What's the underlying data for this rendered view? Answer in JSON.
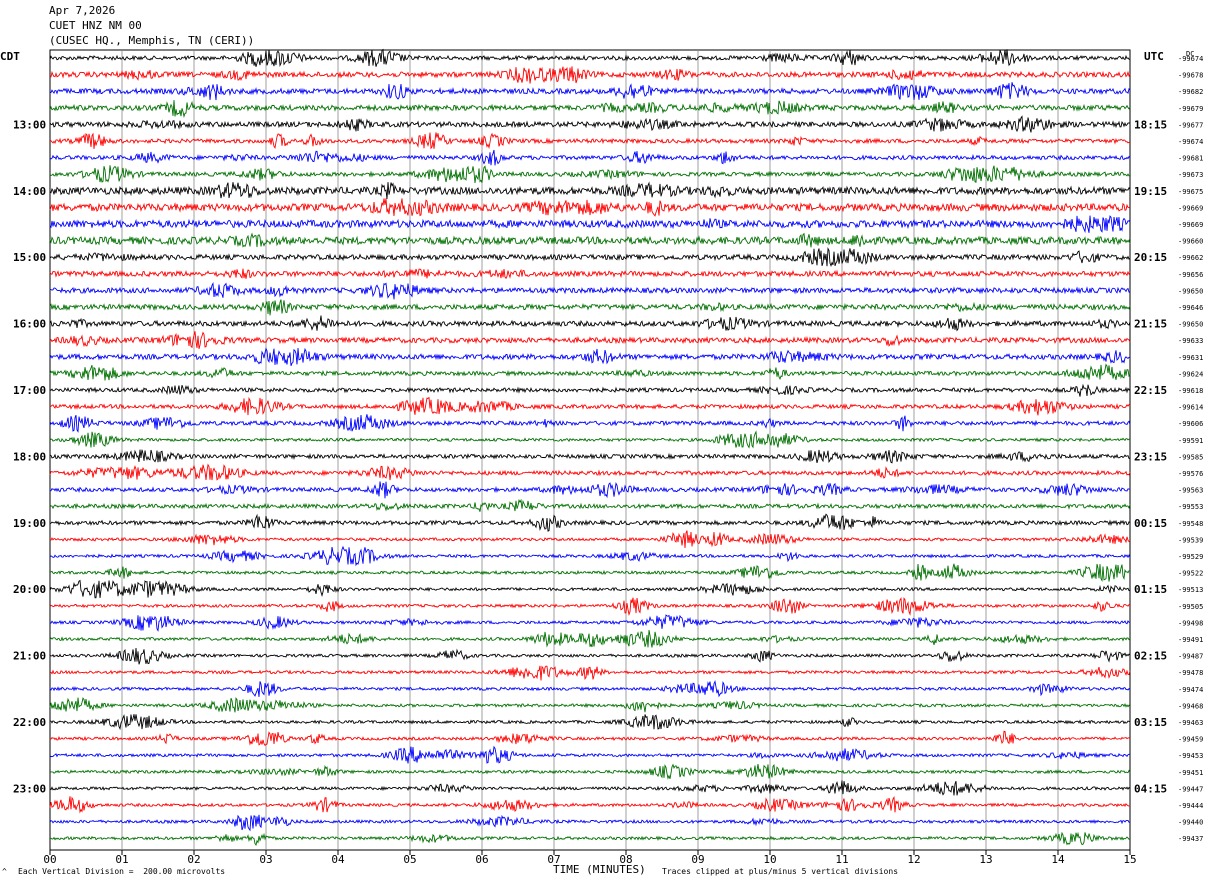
{
  "header": {
    "date": "Apr 7,2026",
    "station": "CUET HNZ NM 00",
    "location": "(CUSEC HQ., Memphis, TN (CERI))"
  },
  "left_tz": "CDT",
  "right_tz": "UTC",
  "dc_label": "DC",
  "footer": {
    "scale_note": "Each Vertical Division =  200.00 microvolts",
    "clip_note": "Traces clipped at plus/minus 5 vertical divisions",
    "corner_mark": "^"
  },
  "chart_data": {
    "type": "line",
    "subtype": "helicorder",
    "xlabel": "TIME (MINUTES)",
    "xlim": [
      0,
      15
    ],
    "x_ticks": [
      "00",
      "01",
      "02",
      "03",
      "04",
      "05",
      "06",
      "07",
      "08",
      "09",
      "10",
      "11",
      "12",
      "13",
      "14",
      "15"
    ],
    "trace_colors": [
      "#000000",
      "#ff0000",
      "#0000ff",
      "#007000"
    ],
    "left_hour_labels": [
      "13:00",
      "14:00",
      "15:00",
      "16:00",
      "17:00",
      "18:00",
      "19:00",
      "20:00",
      "21:00",
      "22:00",
      "23:00"
    ],
    "right_hour_labels": [
      "18:15",
      "19:15",
      "20:15",
      "21:15",
      "22:15",
      "23:15",
      "00:15",
      "01:15",
      "02:15",
      "03:15",
      "04:15"
    ],
    "hour_label_rows": [
      4,
      8,
      12,
      16,
      20,
      24,
      28,
      32,
      36,
      40,
      44
    ],
    "dc_offsets": [
      "-99674",
      "-99678",
      "-99682",
      "-99679",
      "-99677",
      "-99674",
      "-99681",
      "-99673",
      "-99675",
      "-99669",
      "-99669",
      "-99660",
      "-99662",
      "-99656",
      "-99650",
      "-99646",
      "-99650",
      "-99633",
      "-99631",
      "-99624",
      "-99618",
      "-99614",
      "-99606",
      "-99591",
      "-99585",
      "-99576",
      "-99563",
      "-99553",
      "-99548",
      "-99539",
      "-99529",
      "-99522",
      "-99513",
      "-99505",
      "-99498",
      "-99491",
      "-99487",
      "-99478",
      "-99474",
      "-99468",
      "-99463",
      "-99459",
      "-99453",
      "-99451",
      "-99447",
      "-99444",
      "-99440",
      "-99437"
    ],
    "trace_amplitude_level": [
      2,
      3,
      3,
      3,
      3,
      2,
      2,
      2,
      5,
      5,
      5,
      5,
      3,
      3,
      3,
      3,
      3,
      3,
      3,
      2,
      2,
      2,
      2,
      1,
      2,
      2,
      2,
      2,
      2,
      1,
      1,
      1,
      1,
      1,
      1,
      1,
      1,
      1,
      1,
      1,
      1,
      1,
      1,
      1,
      1,
      1,
      1,
      1
    ]
  }
}
